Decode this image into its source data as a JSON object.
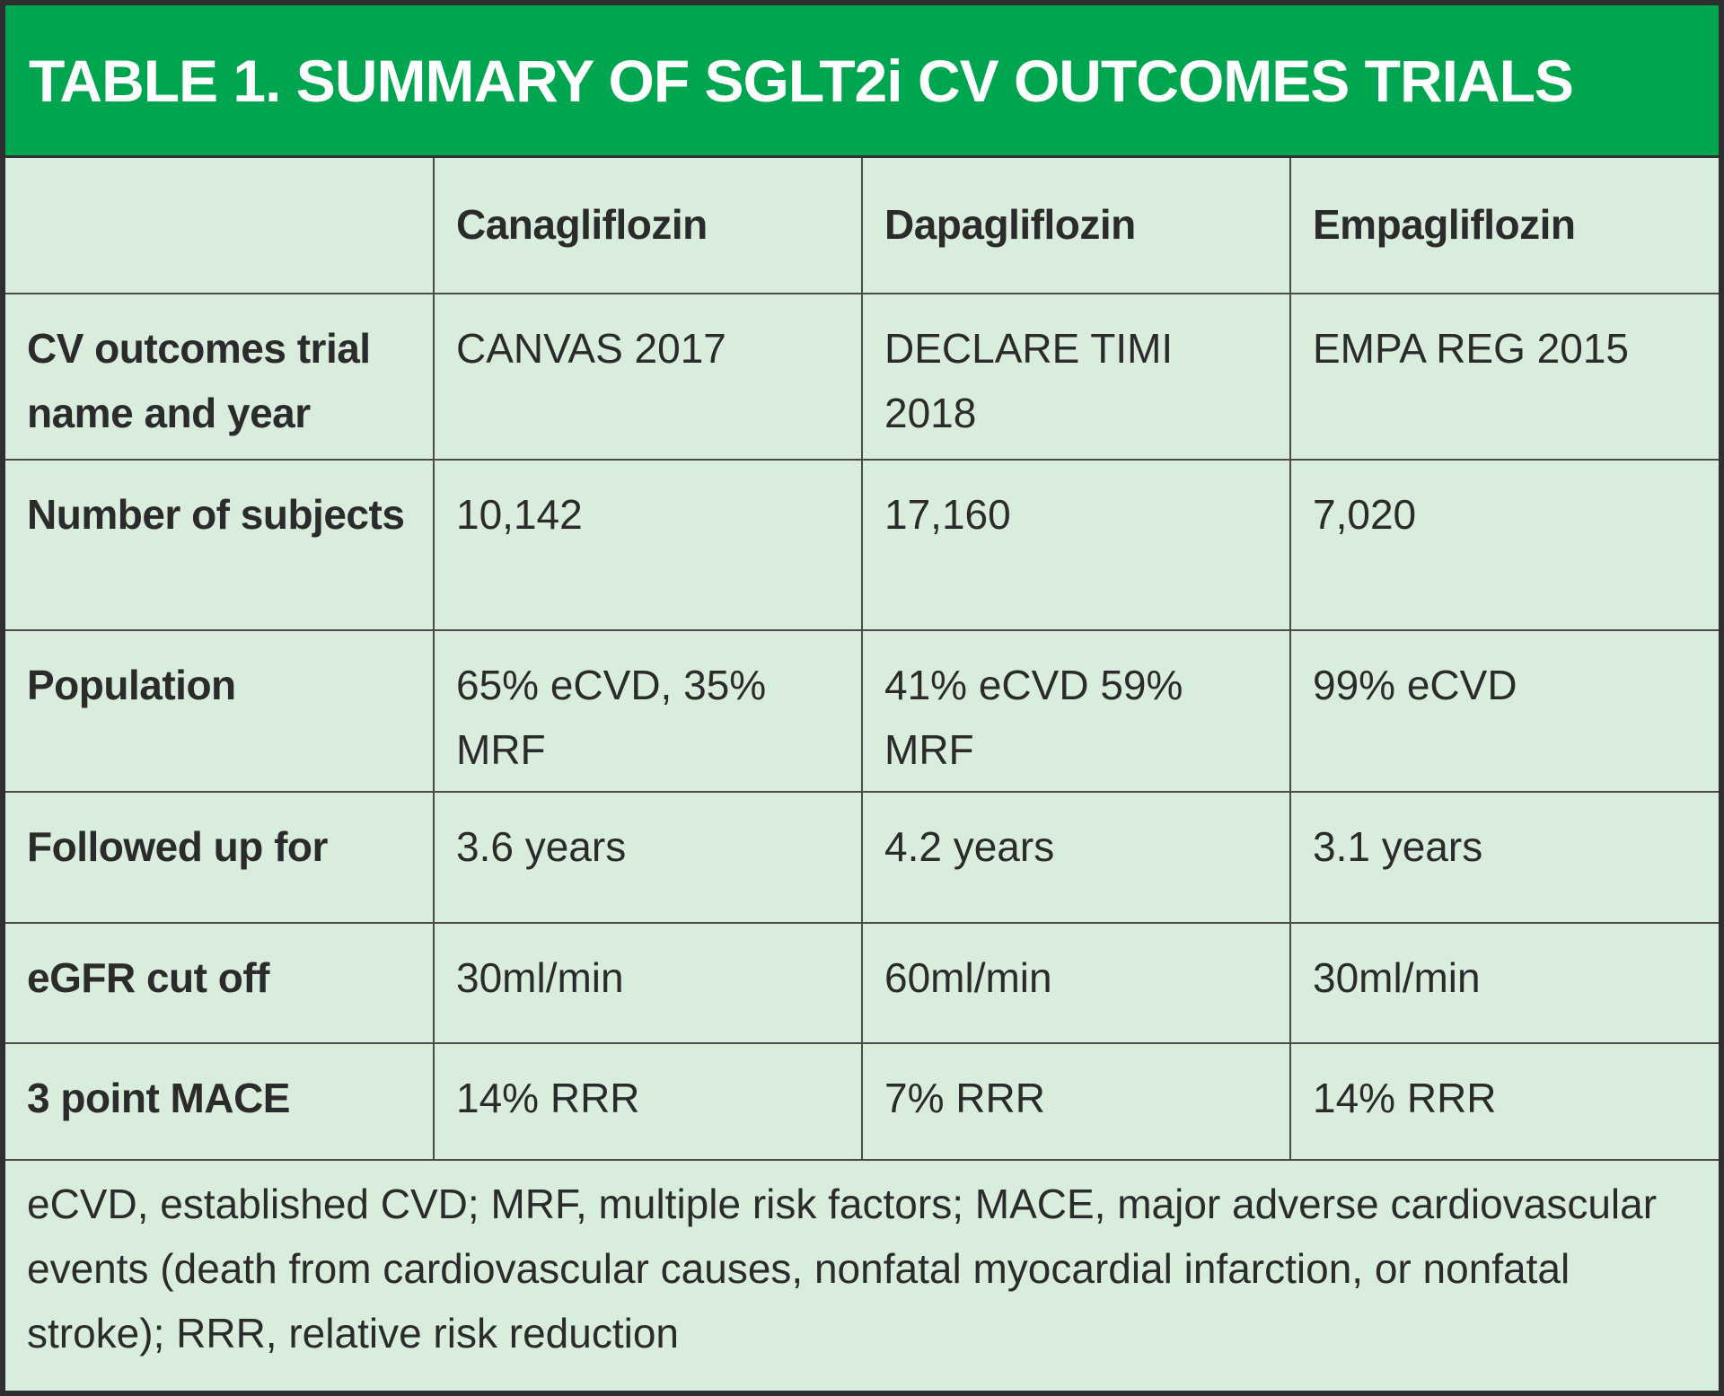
{
  "title": "TABLE 1. SUMMARY OF SGLT2i CV OUTCOMES TRIALS",
  "table": {
    "corner": "",
    "columns": [
      "Canagliflozin",
      "Dapagliflozin",
      "Empagliflozin"
    ],
    "rows": [
      {
        "label": "CV outcomes trial name and year",
        "values": [
          "CANVAS 2017",
          "DECLARE TIMI 2018",
          "EMPA REG 2015"
        ]
      },
      {
        "label": "Number of subjects",
        "values": [
          "10,142",
          "17,160",
          "7,020"
        ]
      },
      {
        "label": "Population",
        "values": [
          "65% eCVD, 35% MRF",
          "41% eCVD 59% MRF",
          "99% eCVD"
        ]
      },
      {
        "label": "Followed up for",
        "values": [
          "3.6 years",
          "4.2 years",
          "3.1 years"
        ]
      },
      {
        "label": "eGFR cut off",
        "values": [
          "30ml/min",
          "60ml/min",
          "30ml/min"
        ]
      },
      {
        "label": "3 point MACE",
        "values": [
          "14% RRR",
          "7% RRR",
          "14% RRR"
        ]
      }
    ]
  },
  "footnote": "eCVD, established CVD; MRF, multiple risk factors; MACE, major adverse cardiovascular events (death from cardiovascular causes, nonfatal myocardial infarction, or nonfatal stroke); RRR, relative risk reduction",
  "colors": {
    "title_bg": "#00a54f",
    "title_text": "#ffffff",
    "table_bg": "#d9eddd",
    "border": "#2f2f2f"
  }
}
